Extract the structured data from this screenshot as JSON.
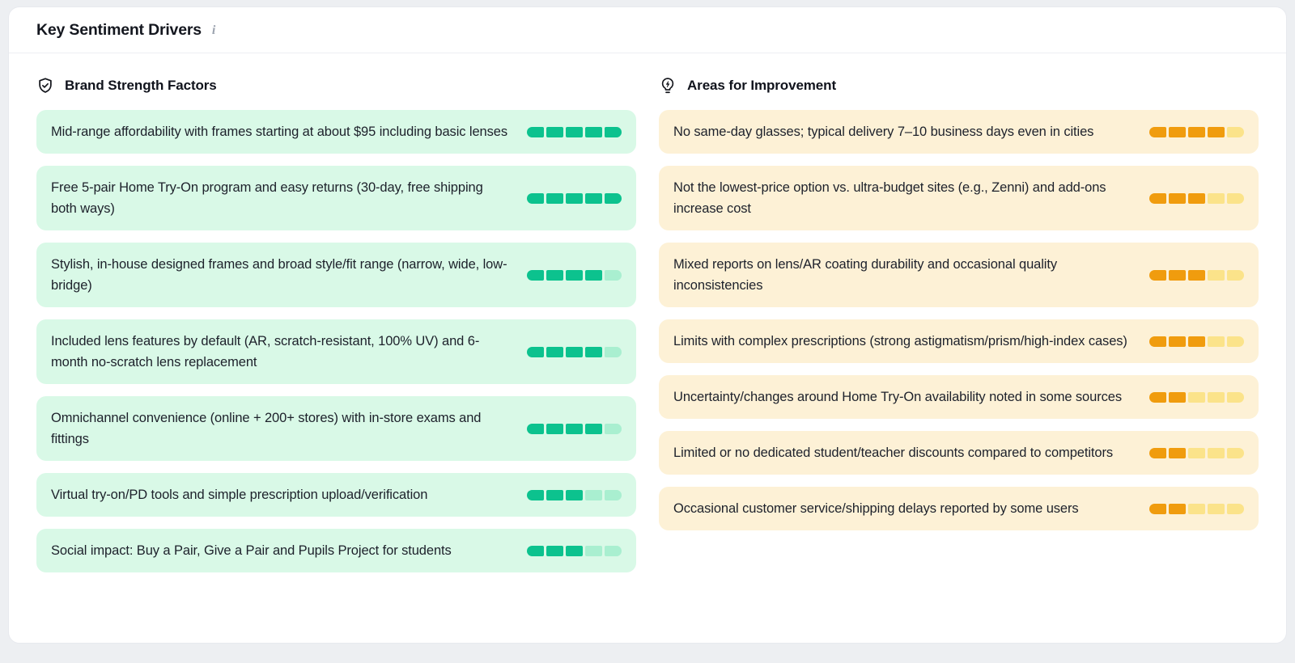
{
  "header": {
    "title": "Key Sentiment Drivers",
    "info_icon": "i"
  },
  "strengths": {
    "title": "Brand Strength Factors",
    "icon": "shield-check-icon",
    "colors": {
      "card_bg": "#d9f9e7",
      "fill": "#0cc28e",
      "empty": "#a9efd0"
    },
    "items": [
      {
        "text": "Mid-range affordability with frames starting at about $95 including basic lenses",
        "score": 5,
        "max": 5
      },
      {
        "text": "Free 5-pair Home Try-On program and easy returns (30-day, free shipping both ways)",
        "score": 5,
        "max": 5
      },
      {
        "text": "Stylish, in-house designed frames and broad style/fit range (narrow, wide, low-bridge)",
        "score": 4,
        "max": 5
      },
      {
        "text": "Included lens features by default (AR, scratch-resistant, 100% UV) and 6-month no-scratch lens replacement",
        "score": 4,
        "max": 5
      },
      {
        "text": "Omnichannel convenience (online + 200+ stores) with in-store exams and fittings",
        "score": 4,
        "max": 5
      },
      {
        "text": "Virtual try-on/PD tools and simple prescription upload/verification",
        "score": 3,
        "max": 5
      },
      {
        "text": "Social impact: Buy a Pair, Give a Pair and Pupils Project for students",
        "score": 3,
        "max": 5
      }
    ]
  },
  "improvements": {
    "title": "Areas for Improvement",
    "icon": "lightbulb-bolt-icon",
    "colors": {
      "card_bg": "#fdf1d6",
      "fill": "#f09c0e",
      "empty": "#fbe38a"
    },
    "items": [
      {
        "text": "No same-day glasses; typical delivery 7–10 business days even in cities",
        "score": 4,
        "max": 5
      },
      {
        "text": "Not the lowest-price option vs. ultra-budget sites (e.g., Zenni) and add-ons increase cost",
        "score": 3,
        "max": 5
      },
      {
        "text": "Mixed reports on lens/AR coating durability and occasional quality inconsistencies",
        "score": 3,
        "max": 5
      },
      {
        "text": "Limits with complex prescriptions (strong astigmatism/prism/high-index cases)",
        "score": 3,
        "max": 5
      },
      {
        "text": "Uncertainty/changes around Home Try-On availability noted in some sources",
        "score": 2,
        "max": 5
      },
      {
        "text": "Limited or no dedicated student/teacher discounts compared to competitors",
        "score": 2,
        "max": 5
      },
      {
        "text": "Occasional customer service/shipping delays reported by some users",
        "score": 2,
        "max": 5
      }
    ]
  }
}
